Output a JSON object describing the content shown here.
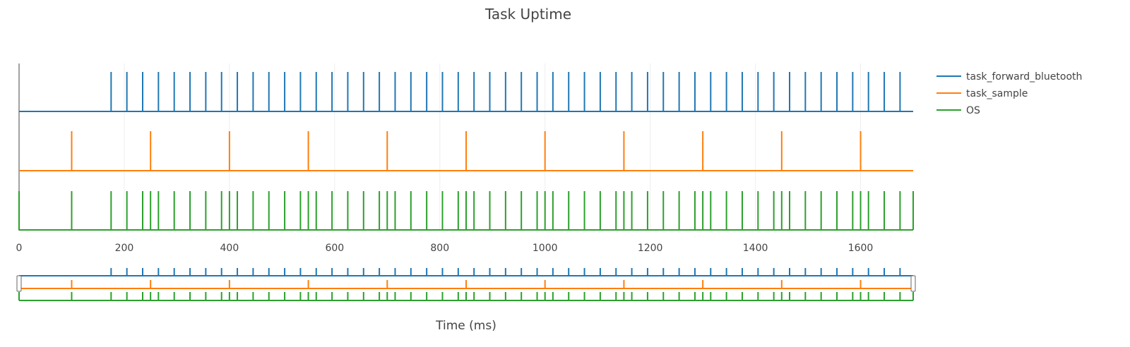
{
  "chart_data": {
    "type": "line",
    "title": "Task Uptime",
    "xlabel": "Time (ms)",
    "ylabel": "",
    "xlim": [
      0,
      1700
    ],
    "x_ticks": [
      0,
      200,
      400,
      600,
      800,
      1000,
      1200,
      1400,
      1600
    ],
    "grid": true,
    "legend_position": "top-right",
    "range_slider": true,
    "series": [
      {
        "name": "task_forward_bluetooth",
        "color": "#1f77b4",
        "spikes": [
          175,
          205,
          235,
          265,
          295,
          325,
          355,
          385,
          415,
          445,
          475,
          505,
          535,
          565,
          595,
          625,
          655,
          685,
          715,
          745,
          775,
          805,
          835,
          865,
          895,
          925,
          955,
          985,
          1015,
          1045,
          1075,
          1105,
          1135,
          1165,
          1195,
          1225,
          1255,
          1285,
          1315,
          1345,
          1375,
          1405,
          1435,
          1465,
          1495,
          1525,
          1555,
          1585,
          1615,
          1645,
          1675
        ]
      },
      {
        "name": "task_sample",
        "color": "#ff7f0e",
        "spikes": [
          100,
          250,
          400,
          550,
          700,
          850,
          1000,
          1150,
          1300,
          1450,
          1600
        ]
      },
      {
        "name": "OS",
        "color": "#2ca02c",
        "spikes": [
          0,
          100,
          175,
          205,
          235,
          250,
          265,
          295,
          325,
          355,
          385,
          400,
          415,
          445,
          475,
          505,
          535,
          550,
          565,
          595,
          625,
          655,
          685,
          700,
          715,
          745,
          775,
          805,
          835,
          850,
          865,
          895,
          925,
          955,
          985,
          1000,
          1015,
          1045,
          1075,
          1105,
          1135,
          1150,
          1165,
          1195,
          1225,
          1255,
          1285,
          1300,
          1315,
          1345,
          1375,
          1405,
          1435,
          1450,
          1465,
          1495,
          1525,
          1555,
          1585,
          1600,
          1615,
          1645,
          1675,
          1700
        ]
      }
    ]
  }
}
